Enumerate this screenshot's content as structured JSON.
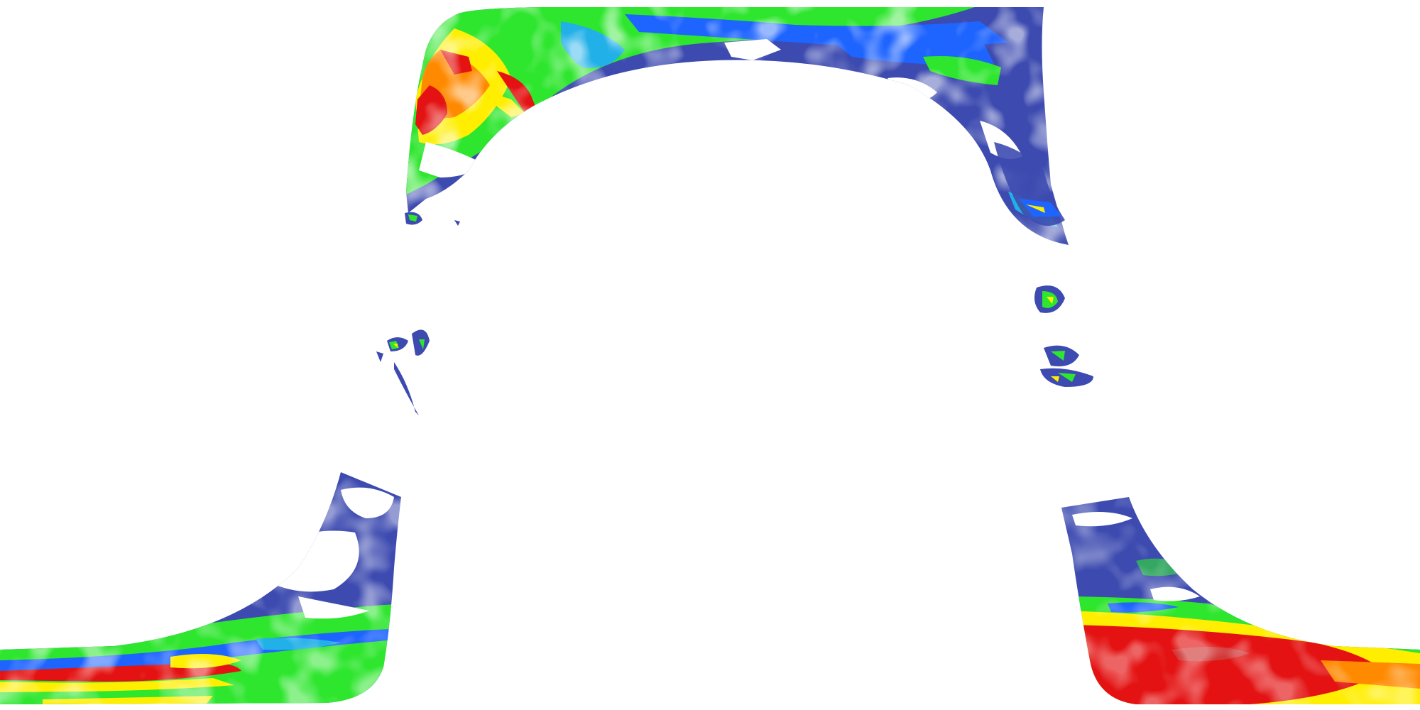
{
  "map": {
    "background": "#ffffff",
    "palette": {
      "low": "#3d4bb0",
      "low_light": "#6f78d0",
      "cloud": "#ffffff",
      "mid_blue": "#1e64ff",
      "cyan": "#22b0e8",
      "green": "#2ee62e",
      "yellow": "#ffee00",
      "orange": "#ff8a00",
      "red": "#e41212",
      "dark_red": "#c01010"
    }
  }
}
